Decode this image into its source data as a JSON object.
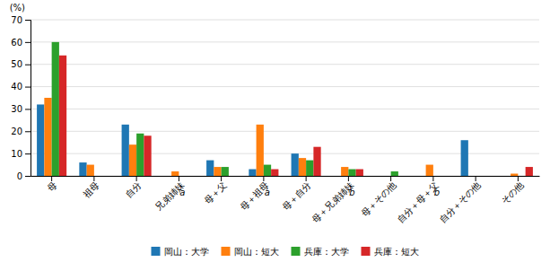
{
  "chart_data": {
    "type": "bar",
    "categories": [
      "母",
      "祖母",
      "自分",
      "兄弟姉妹",
      "母＋父",
      "母＋祖母",
      "母＋自分",
      "母＋兄弟姉妹",
      "母＋その他",
      "自分＋母＋父",
      "自分＋その他",
      "その他"
    ],
    "series": [
      {
        "name": "岡山：大学",
        "values": [
          32,
          6,
          23,
          0,
          7,
          3,
          10,
          0,
          0,
          0,
          16,
          0
        ]
      },
      {
        "name": "岡山：短大",
        "values": [
          35,
          5,
          14,
          2,
          4,
          23,
          8,
          4,
          0,
          5,
          0,
          1
        ]
      },
      {
        "name": "兵庫：大学",
        "values": [
          60,
          0,
          19,
          0,
          4,
          5,
          7,
          3,
          2,
          0,
          0,
          0
        ]
      },
      {
        "name": "兵庫：短大",
        "values": [
          54,
          0,
          18,
          0,
          0,
          3,
          13,
          3,
          0,
          0,
          0,
          4
        ]
      }
    ],
    "ylabel": "(%)",
    "ylim": [
      0,
      70
    ],
    "yticks": [
      0,
      10,
      20,
      30,
      40,
      50,
      60,
      70
    ],
    "grid": true,
    "legend": "bottom",
    "annotations": [
      {
        "label": "a",
        "category": "兄弟姉妹"
      },
      {
        "label": "a",
        "category": "母＋祖母"
      },
      {
        "label": "b",
        "category": "母＋兄弟姉妹"
      },
      {
        "label": "b",
        "category": "自分＋母＋父"
      }
    ]
  }
}
